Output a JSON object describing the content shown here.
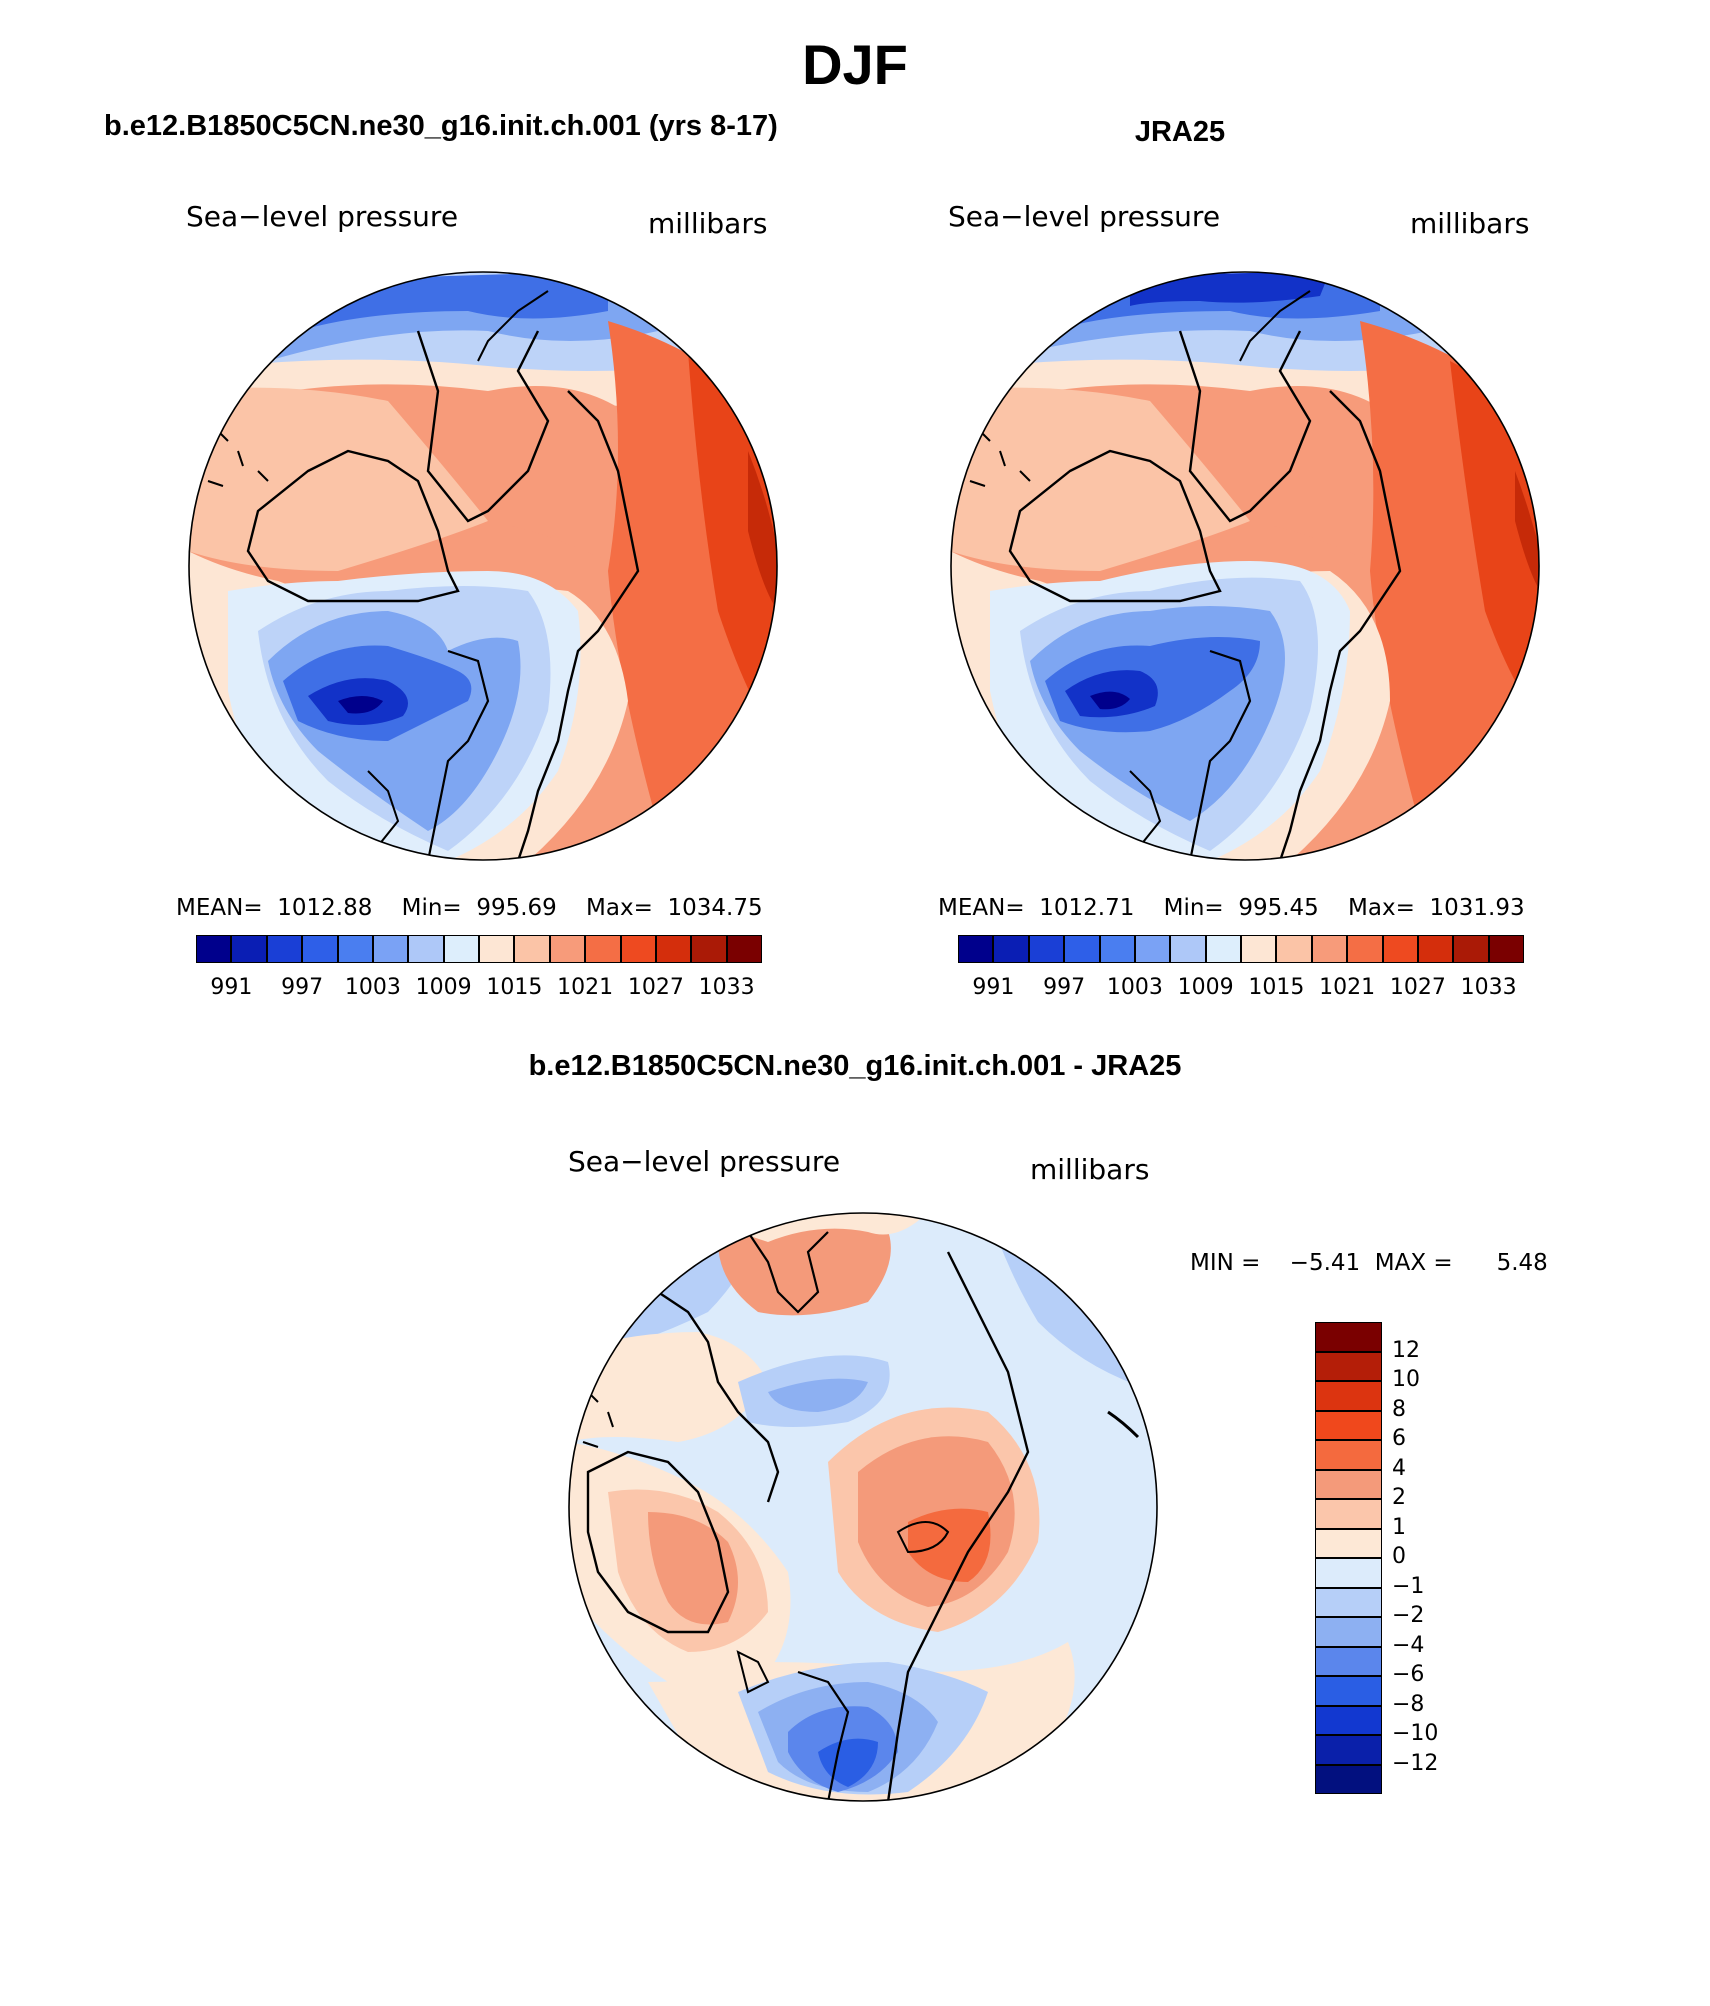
{
  "page_title": "DJF",
  "panels": [
    {
      "title": "b.e12.B1850C5CN.ne30_g16.init.ch.001 (yrs 8-17)",
      "variable": "Sea−level pressure",
      "units": "millibars",
      "stats": {
        "mean_label": "MEAN=",
        "mean": "1012.88",
        "min_label": "Min=",
        "min": "995.69",
        "max_label": "Max=",
        "max": "1034.75"
      }
    },
    {
      "title": "JRA25",
      "variable": "Sea−level pressure",
      "units": "millibars",
      "stats": {
        "mean_label": "MEAN=",
        "mean": "1012.71",
        "min_label": "Min=",
        "min": "995.45",
        "max_label": "Max=",
        "max": "1031.93"
      }
    },
    {
      "title": "b.e12.B1850C5CN.ne30_g16.init.ch.001 - JRA25",
      "variable": "Sea−level pressure",
      "units": "millibars",
      "stats": {
        "min_label": "MIN =",
        "min": "−5.41",
        "max_label": "MAX =",
        "max": "5.48"
      }
    }
  ],
  "abs_colorbar": {
    "colors": [
      "#00008c",
      "#0a1eb4",
      "#1a3fd6",
      "#2e5fe8",
      "#4a7ef0",
      "#7aa2f5",
      "#aec8f8",
      "#ddeefc",
      "#fde6d4",
      "#fbc4a7",
      "#f79b7a",
      "#f46e45",
      "#ee4a20",
      "#d42e0c",
      "#aa1a06",
      "#7a0000"
    ],
    "labels": [
      "991",
      "997",
      "1003",
      "1009",
      "1015",
      "1021",
      "1027",
      "1033"
    ]
  },
  "diff_colorbar": {
    "colors": [
      "#7a0000",
      "#b41e08",
      "#dc3410",
      "#f0481c",
      "#f46a3e",
      "#f49a7a",
      "#fbc6ab",
      "#fde8d6",
      "#dcebfb",
      "#b6cff8",
      "#8db0f2",
      "#5b86ec",
      "#2a5ee4",
      "#1238d0",
      "#0a20aa",
      "#02107f"
    ],
    "labels": [
      "12",
      "10",
      "8",
      "6",
      "4",
      "2",
      "1",
      "0",
      "−1",
      "−2",
      "−4",
      "−6",
      "−8",
      "−10",
      "−12"
    ]
  },
  "map_palette": {
    "deep_low": "#1232c8",
    "low": "#3f6fe6",
    "mid_low": "#7ea6f2",
    "weak_low": "#bdd3f8",
    "neutral_low": "#e0eefc",
    "neutral_high": "#fde6d4",
    "weak_high": "#fbc4a7",
    "mid_high": "#f79b7a",
    "high": "#f46e45",
    "very_high": "#e84418",
    "peak": "#c62a08"
  }
}
